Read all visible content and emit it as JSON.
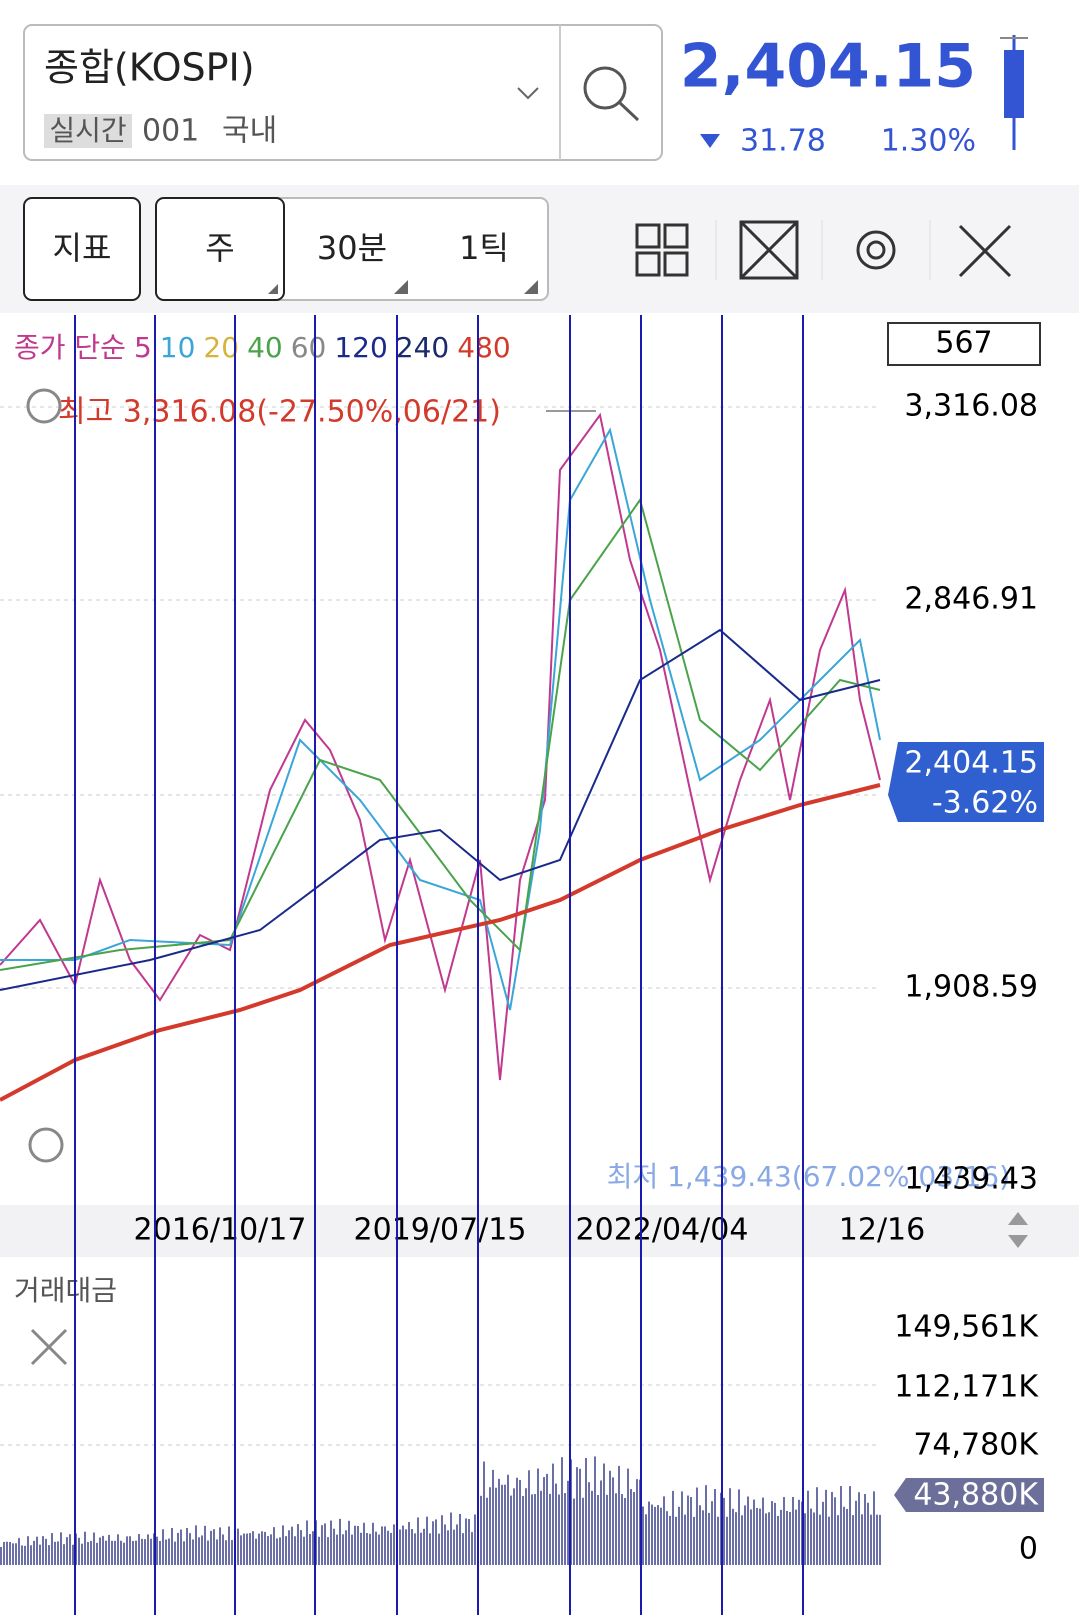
{
  "header": {
    "symbol": "종합(KOSPI)",
    "badge": "실시간",
    "code": "001",
    "market": "국내",
    "price": "2,404.15",
    "change": "31.78",
    "change_pct": "1.30%"
  },
  "toolbar": {
    "buttons": [
      "지표",
      "주",
      "30분",
      "1틱"
    ]
  },
  "chart": {
    "legend": [
      {
        "label": "종가 단순",
        "color": "#c0398f"
      },
      {
        "label": "5",
        "color": "#c0398f"
      },
      {
        "label": "10",
        "color": "#3aa6d8"
      },
      {
        "label": "20",
        "color": "#d4b43b"
      },
      {
        "label": "40",
        "color": "#4aa34a"
      },
      {
        "label": "60",
        "color": "#888888"
      },
      {
        "label": "120",
        "color": "#1a2a8a"
      },
      {
        "label": "240",
        "color": "#1a2a6a"
      },
      {
        "label": "480",
        "color": "#d33a2c"
      }
    ],
    "count": "567",
    "price_axis": [
      "3,316.08",
      "2,846.91",
      "1,908.59",
      "1,439.43"
    ],
    "high_note": "최고 3,316.08(-27.50%,06/21)",
    "low_note": "최저 1,439.43(67.02%,03/16)",
    "current_price": "2,404.15",
    "current_change": "-3.62%",
    "dates": [
      "2016/10/17",
      "2019/07/15",
      "2022/04/04",
      "12/16"
    ]
  },
  "volume": {
    "title": "거래대금",
    "axis": [
      "149,561K",
      "112,171K",
      "74,780K",
      "0"
    ],
    "current": "43,880K"
  }
}
